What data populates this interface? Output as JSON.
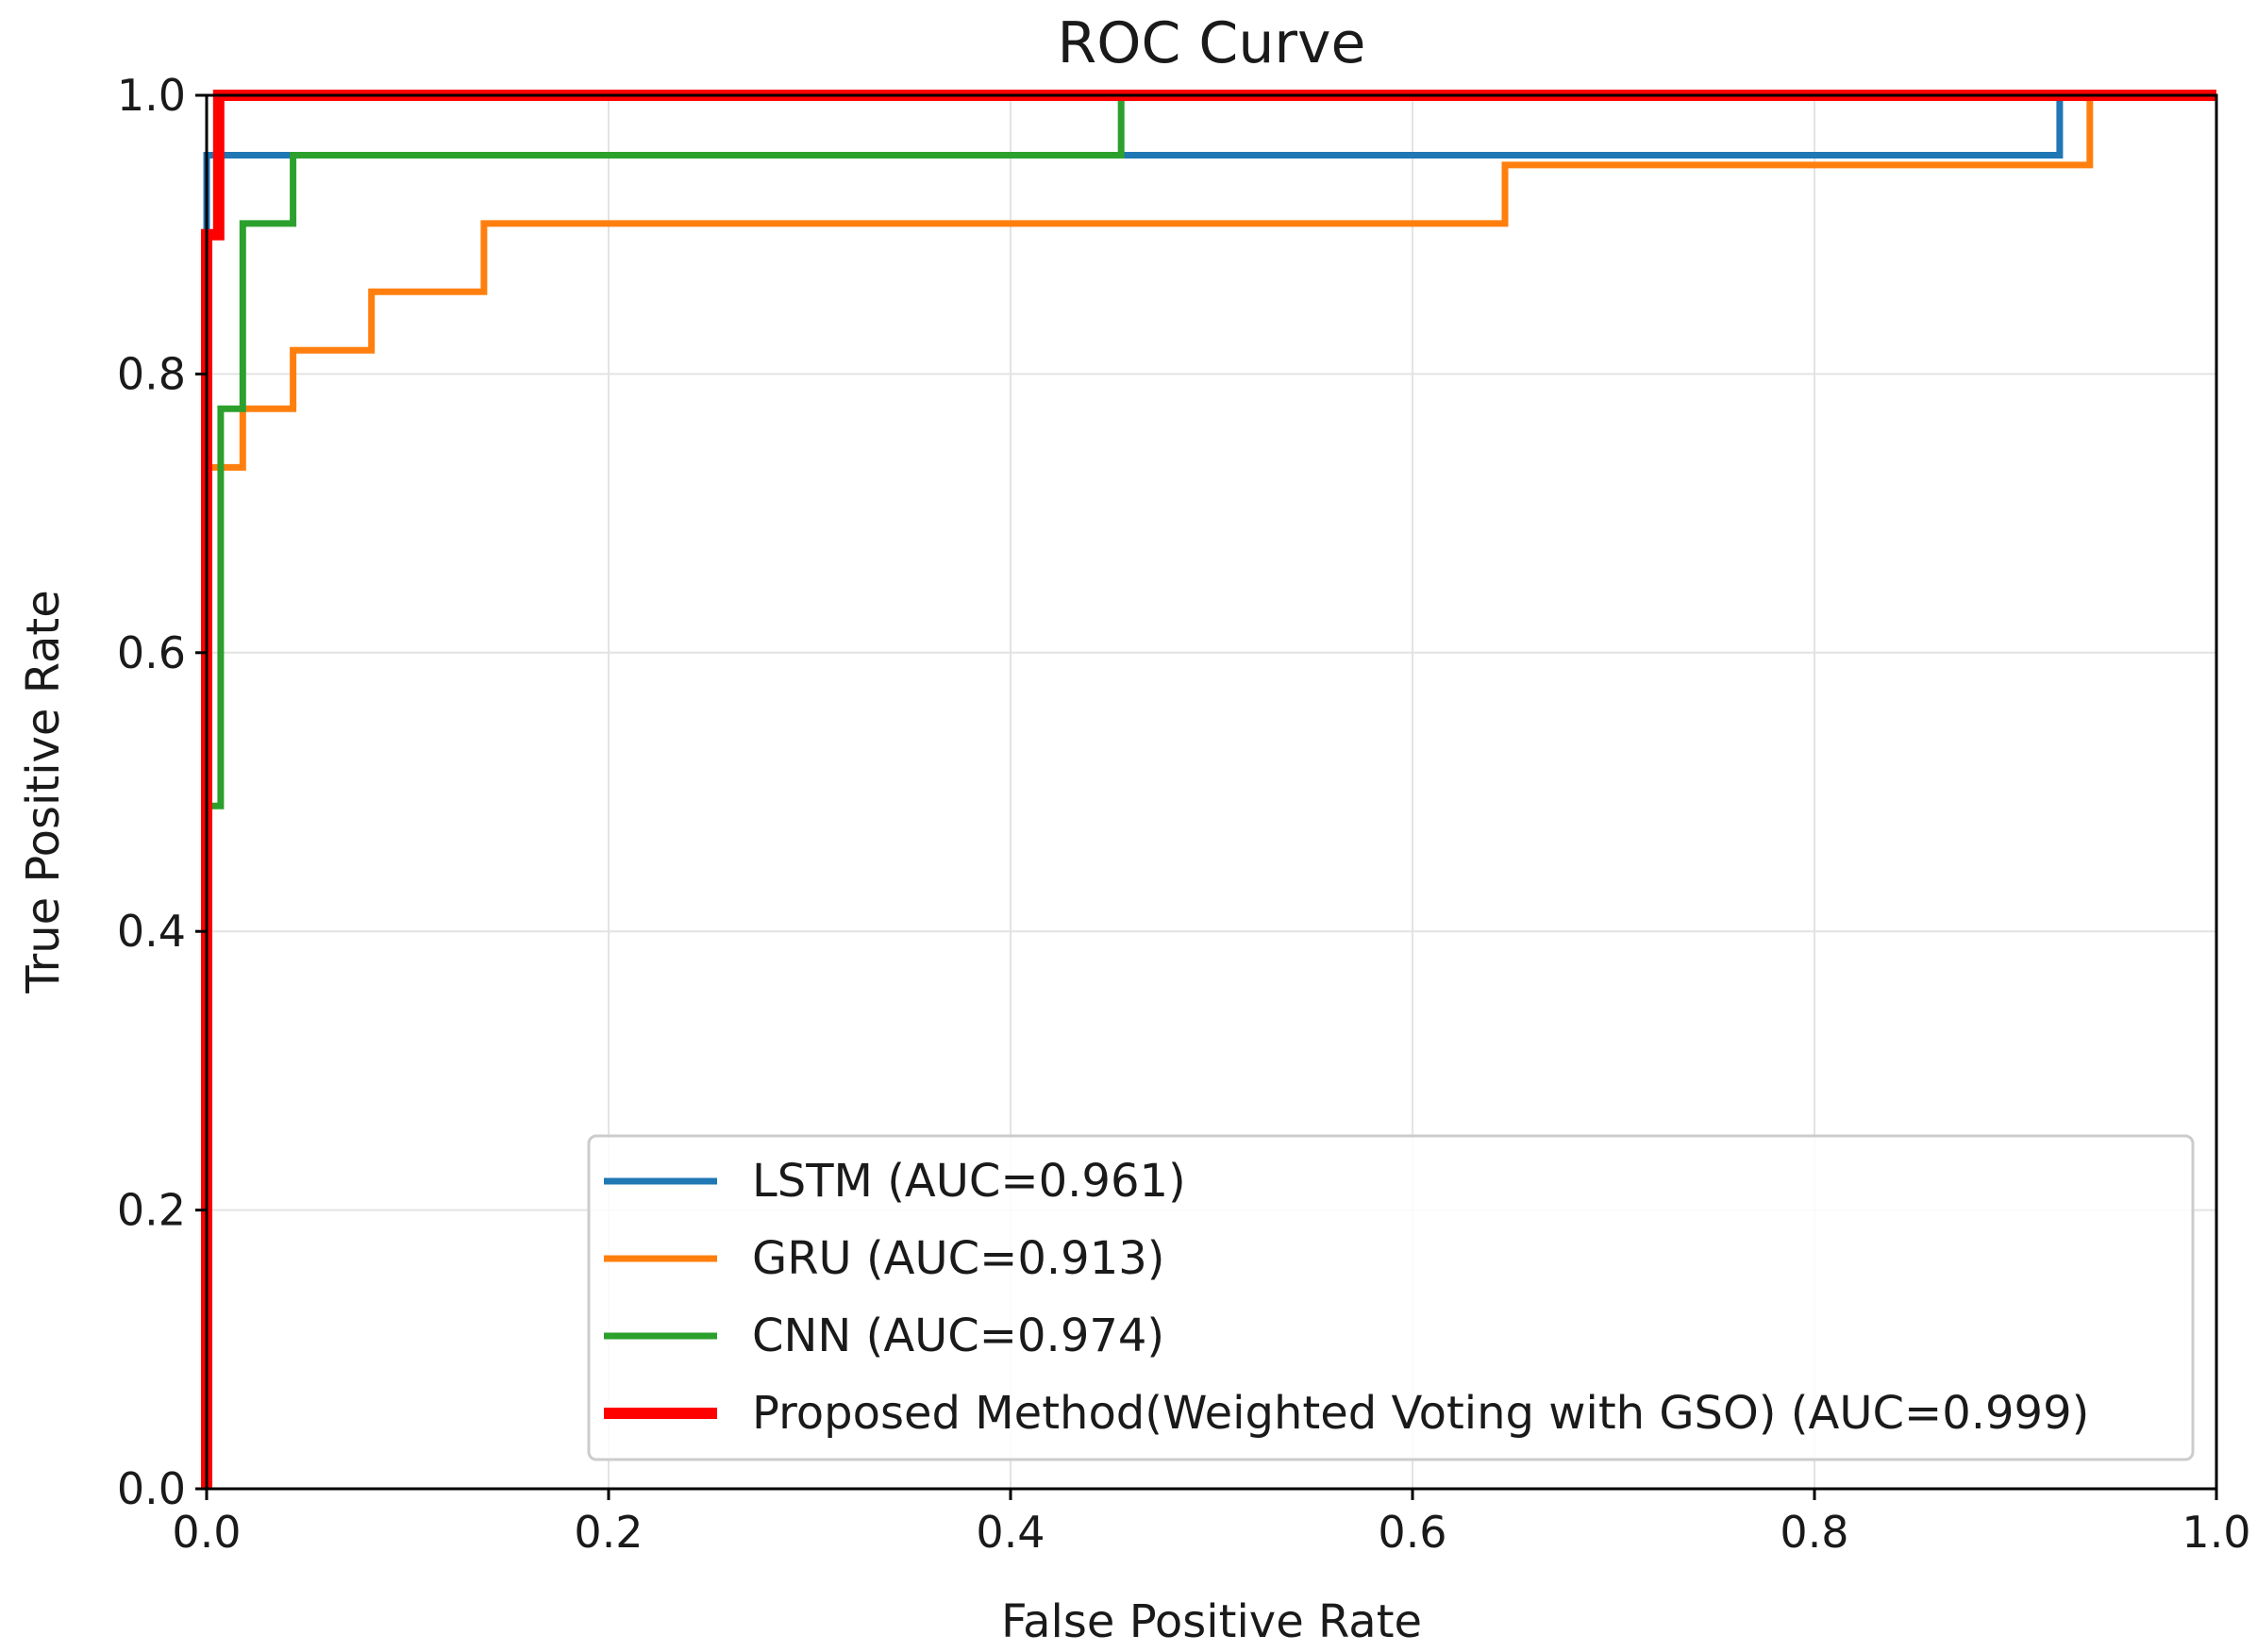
{
  "chart_data": {
    "type": "line",
    "title": "ROC Curve",
    "xlabel": "False Positive Rate",
    "ylabel": "True Positive Rate",
    "xlim": [
      0,
      1
    ],
    "ylim": [
      0,
      1
    ],
    "grid": true,
    "legend_position": "lower-right",
    "x_ticks": [
      0.0,
      0.2,
      0.4,
      0.6,
      0.8,
      1.0
    ],
    "y_ticks": [
      0.0,
      0.2,
      0.4,
      0.6,
      0.8,
      1.0
    ],
    "x_tick_labels": [
      "0.0",
      "0.2",
      "0.4",
      "0.6",
      "0.8",
      "1.0"
    ],
    "y_tick_labels": [
      "0.0",
      "0.2",
      "0.4",
      "0.6",
      "0.8",
      "1.0"
    ],
    "series": [
      {
        "name": "LSTM (AUC=0.961)",
        "color": "#1f77b4",
        "x": [
          0.0,
          0.0,
          0.0,
          0.922,
          0.922,
          1.0
        ],
        "y": [
          0.0,
          0.957,
          0.957,
          0.957,
          1.0,
          1.0
        ]
      },
      {
        "name": "GRU (AUC=0.913)",
        "color": "#ff7f0e",
        "x": [
          0.0,
          0.0,
          0.018,
          0.018,
          0.043,
          0.043,
          0.082,
          0.082,
          0.138,
          0.138,
          0.646,
          0.646,
          0.937,
          0.937,
          1.0
        ],
        "y": [
          0.0,
          0.733,
          0.733,
          0.775,
          0.775,
          0.817,
          0.817,
          0.859,
          0.859,
          0.908,
          0.908,
          0.95,
          0.95,
          1.0,
          1.0
        ]
      },
      {
        "name": "CNN (AUC=0.974)",
        "color": "#2ca02c",
        "x": [
          0.0,
          0.0,
          0.007,
          0.007,
          0.018,
          0.018,
          0.043,
          0.043,
          0.455,
          0.455,
          1.0
        ],
        "y": [
          0.0,
          0.49,
          0.49,
          0.775,
          0.775,
          0.908,
          0.908,
          0.957,
          0.957,
          1.0,
          1.0
        ]
      },
      {
        "name": "Proposed Method(Weighted Voting with GSO) (AUC=0.999)",
        "color": "#ff0000",
        "x": [
          0.0,
          0.0,
          0.006,
          0.006,
          1.0
        ],
        "y": [
          0.0,
          0.9,
          0.9,
          1.0,
          1.0
        ]
      }
    ]
  }
}
